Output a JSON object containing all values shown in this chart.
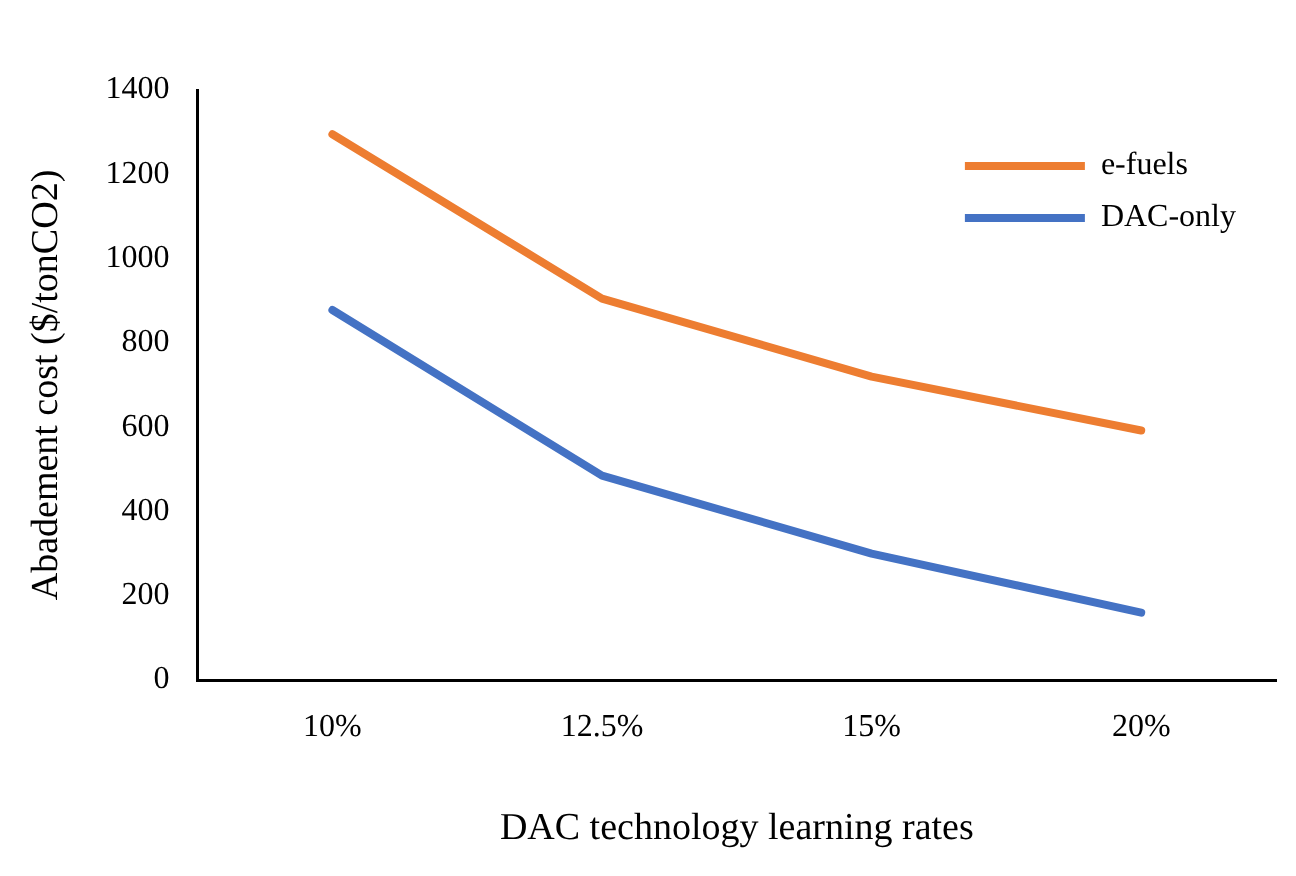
{
  "chart_data": {
    "type": "line",
    "xlabel": "DAC technology learning rates",
    "ylabel": "Abadement cost ($/tonCO2)",
    "categories": [
      "10%",
      "12.5%",
      "15%",
      "20%"
    ],
    "series": [
      {
        "name": "e-fuels",
        "color": "#ed7d31",
        "values": [
          1295,
          905,
          720,
          592
        ]
      },
      {
        "name": "DAC-only",
        "color": "#4472c4",
        "values": [
          878,
          485,
          300,
          160
        ]
      }
    ],
    "ylim": [
      0,
      1400
    ],
    "yticks": [
      0,
      200,
      400,
      600,
      800,
      1000,
      1200,
      1400
    ],
    "grid": false,
    "legend": "top right",
    "marker": "none",
    "line_style": "solid"
  }
}
